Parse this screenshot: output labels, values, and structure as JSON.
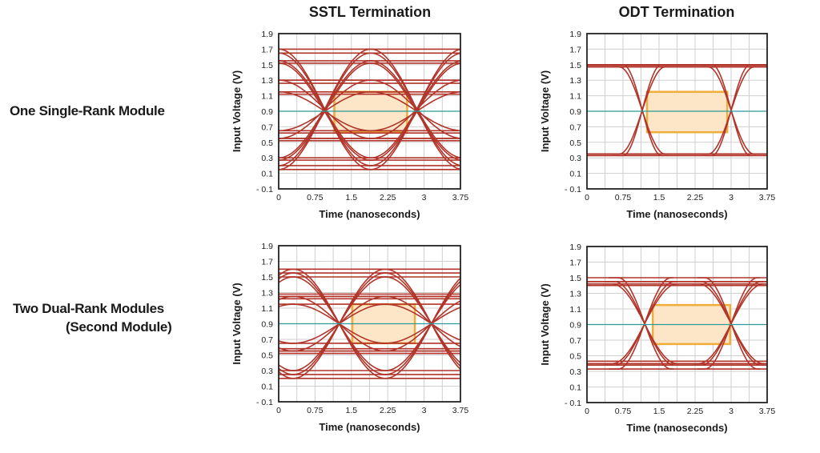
{
  "row_labels": {
    "row1": "One Single-Rank Module",
    "row2_line1": "Two Dual-Rank Modules",
    "row2_line2": "(Second Module)"
  },
  "column_titles": [
    "SSTL Termination",
    "ODT Termination"
  ],
  "colors": {
    "trace": "#b1352a",
    "vref": "#2a9a9a",
    "eye_box_fill": "#fde6c8",
    "eye_box_stroke": "#f0ad3a",
    "grid": "#cfcfcf"
  },
  "chart_data": [
    {
      "type": "line",
      "subtype": "eye-diagram",
      "row": 0,
      "col": 0,
      "column_title": "SSTL Termination",
      "xlabel": "Time (nanoseconds)",
      "ylabel": "Input Voltage (V)",
      "xlim": [
        0,
        3.75
      ],
      "ylim": [
        -0.1,
        1.9
      ],
      "xticks": [
        "0",
        "0.75",
        "1.5",
        "2.25",
        "3",
        "3.75"
      ],
      "yticks": [
        "1.9",
        "1.7",
        "1.5",
        "1.3",
        "1.1",
        "0.9",
        "0.7",
        "0.5",
        "0.3",
        "0.1",
        "- 0.1"
      ],
      "grid": true,
      "vref": 0.9,
      "crossings": [
        -0.95,
        0.95,
        2.85,
        4.75
      ],
      "flat_levels": [
        1.3,
        1.26,
        1.15,
        1.12,
        0.55,
        0.52,
        0.65,
        0.62
      ],
      "transitions": [
        {
          "low": 0.15,
          "high": 1.7,
          "width": 1.9
        },
        {
          "low": 0.2,
          "high": 1.65,
          "width": 1.9
        },
        {
          "low": 0.3,
          "high": 1.55,
          "width": 1.9
        },
        {
          "low": 0.27,
          "high": 1.52,
          "width": 1.9
        },
        {
          "low": 0.55,
          "high": 1.3,
          "width": 1.9
        },
        {
          "low": 0.65,
          "high": 1.15,
          "width": 1.9
        }
      ],
      "eye_box": {
        "x": [
          1.15,
          2.65
        ],
        "y": [
          0.63,
          1.15
        ]
      }
    },
    {
      "type": "line",
      "subtype": "eye-diagram",
      "row": 0,
      "col": 1,
      "column_title": "ODT Termination",
      "xlabel": "Time (nanoseconds)",
      "ylabel": "Input Voltage (V)",
      "xlim": [
        0,
        3.75
      ],
      "ylim": [
        -0.1,
        1.9
      ],
      "xticks": [
        "0",
        "0.75",
        "1.5",
        "2.25",
        "3",
        "3.75"
      ],
      "yticks": [
        "1.9",
        "1.7",
        "1.5",
        "1.3",
        "1.1",
        "0.9",
        "0.7",
        "0.5",
        "0.3",
        "0.1",
        "- 0.1"
      ],
      "grid": true,
      "vref": 0.9,
      "crossings": [
        -0.7,
        1.15,
        3.0,
        4.85
      ],
      "flat_levels": [
        1.49,
        1.47,
        0.35,
        0.33
      ],
      "transitions": [
        {
          "low": 0.33,
          "high": 1.5,
          "width": 0.8
        },
        {
          "low": 0.35,
          "high": 1.47,
          "width": 0.95
        }
      ],
      "eye_box": {
        "x": [
          1.25,
          2.92
        ],
        "y": [
          0.63,
          1.15
        ]
      }
    },
    {
      "type": "line",
      "subtype": "eye-diagram",
      "row": 1,
      "col": 0,
      "column_title": "SSTL Termination",
      "xlabel": "Time (nanoseconds)",
      "ylabel": "Input Voltage (V)",
      "xlim": [
        0,
        3.75
      ],
      "ylim": [
        -0.1,
        1.9
      ],
      "xticks": [
        "0",
        "0.75",
        "1.5",
        "2.25",
        "3",
        "3.75"
      ],
      "yticks": [
        "1.9",
        "1.7",
        "1.5",
        "1.3",
        "1.1",
        "0.9",
        "0.7",
        "0.5",
        "0.3",
        "0.1",
        "- 0.1"
      ],
      "grid": true,
      "vref": 0.9,
      "crossings": [
        -0.65,
        1.25,
        3.15,
        5.05
      ],
      "flat_levels": [
        1.28,
        1.25,
        1.22,
        0.55,
        0.58,
        0.52
      ],
      "transitions": [
        {
          "low": 0.2,
          "high": 1.6,
          "width": 1.9
        },
        {
          "low": 0.25,
          "high": 1.55,
          "width": 1.9
        },
        {
          "low": 0.3,
          "high": 1.5,
          "width": 1.9
        },
        {
          "low": 0.55,
          "high": 1.25,
          "width": 1.9
        },
        {
          "low": 0.65,
          "high": 1.15,
          "width": 1.9
        }
      ],
      "eye_box": {
        "x": [
          1.52,
          2.81
        ],
        "y": [
          0.65,
          1.15
        ]
      }
    },
    {
      "type": "line",
      "subtype": "eye-diagram",
      "row": 1,
      "col": 1,
      "column_title": "ODT Termination",
      "xlabel": "Time (nanoseconds)",
      "ylabel": "Input Voltage (V)",
      "xlim": [
        0,
        3.75
      ],
      "ylim": [
        -0.1,
        1.9
      ],
      "xticks": [
        "0",
        "0.75",
        "1.5",
        "2.25",
        "3",
        "3.75"
      ],
      "yticks": [
        "1.9",
        "1.7",
        "1.5",
        "1.3",
        "1.1",
        "0.9",
        "0.7",
        "0.5",
        "0.3",
        "0.1",
        "- 0.1"
      ],
      "grid": true,
      "vref": 0.9,
      "crossings": [
        -0.65,
        1.2,
        3.0,
        4.85
      ],
      "flat_levels": [
        1.45,
        1.42,
        1.4,
        0.4,
        0.38,
        0.43
      ],
      "transitions": [
        {
          "low": 0.33,
          "high": 1.5,
          "width": 1.1
        },
        {
          "low": 0.38,
          "high": 1.45,
          "width": 1.25
        },
        {
          "low": 0.4,
          "high": 1.42,
          "width": 1.35
        }
      ],
      "eye_box": {
        "x": [
          1.37,
          2.98
        ],
        "y": [
          0.65,
          1.15
        ]
      }
    }
  ]
}
